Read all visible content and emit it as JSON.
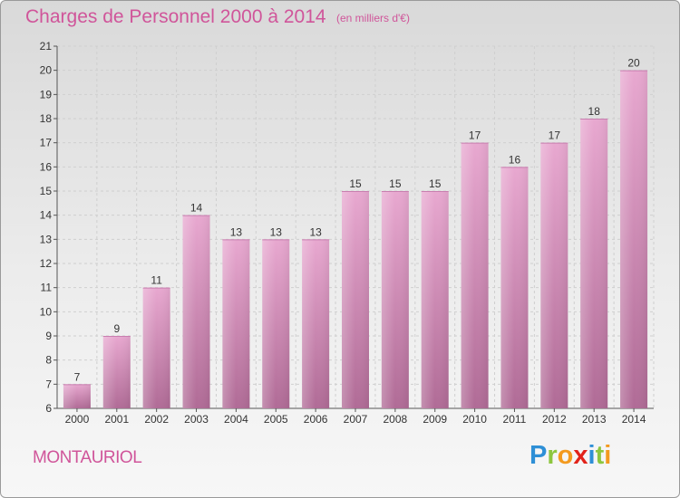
{
  "title": "Charges de Personnel 2000 à 2014",
  "unit": "(en milliers d'€)",
  "town": "MONTAURIOL",
  "logo": {
    "text": "Proxiti",
    "letters": [
      "P",
      "r",
      "o",
      "x",
      "i",
      "t",
      "i"
    ]
  },
  "colors": {
    "accent": "#d0559a",
    "bar_top": "#e8a8d0",
    "bar_bottom": "#b06b96"
  },
  "chart_data": {
    "type": "bar",
    "title": "Charges de Personnel 2000 à 2014",
    "subtitle": "(en milliers d'€)",
    "categories": [
      "2000",
      "2001",
      "2002",
      "2003",
      "2004",
      "2005",
      "2006",
      "2007",
      "2008",
      "2009",
      "2010",
      "2011",
      "2012",
      "2013",
      "2014"
    ],
    "values": [
      7,
      9,
      11,
      14,
      13,
      13,
      13,
      15,
      15,
      15,
      17,
      16,
      17,
      18,
      20
    ],
    "ylim": [
      6,
      21
    ],
    "yticks": [
      6,
      7,
      8,
      9,
      10,
      11,
      12,
      13,
      14,
      15,
      16,
      17,
      18,
      19,
      20,
      21
    ],
    "grid": true,
    "data_labels": true
  }
}
